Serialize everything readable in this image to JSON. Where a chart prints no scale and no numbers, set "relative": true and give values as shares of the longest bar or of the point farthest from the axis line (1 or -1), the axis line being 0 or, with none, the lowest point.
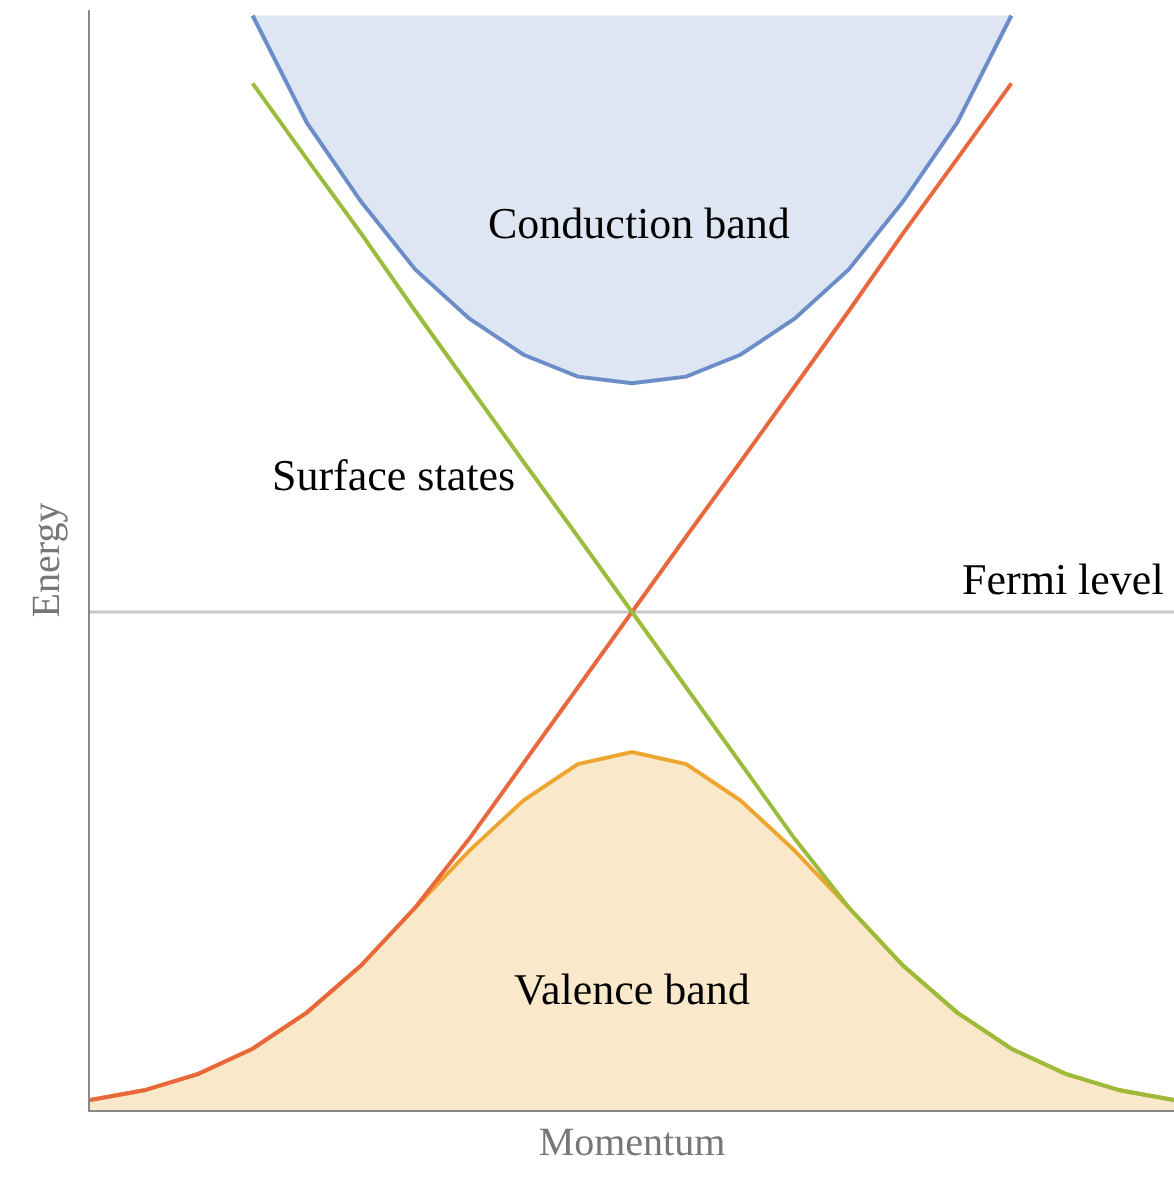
{
  "chart_data": {
    "type": "line",
    "relative": true,
    "xlabel": "Momentum",
    "ylabel": "Energy",
    "legend": false,
    "grid": false,
    "categories": [
      null,
      null,
      null,
      null,
      null,
      null,
      null,
      null,
      null,
      null,
      null,
      null,
      null,
      null,
      null,
      null,
      null,
      null,
      null,
      null,
      null
    ],
    "series": [
      {
        "name": "Valence band",
        "type": "area",
        "color": "#eda530",
        "values": [
          0.009,
          0.018,
          0.033,
          0.056,
          0.089,
          0.132,
          0.185,
          0.237,
          0.283,
          0.316,
          0.327,
          0.316,
          0.283,
          0.237,
          0.185,
          0.132,
          0.089,
          0.056,
          0.033,
          0.018,
          0.009
        ]
      },
      {
        "name": "Conduction band",
        "type": "line",
        "color": "#6b8cc7",
        "values": [
          null,
          null,
          null,
          1,
          0.902,
          0.83,
          0.768,
          0.723,
          0.69,
          0.67,
          0.664,
          0.67,
          0.69,
          0.723,
          0.768,
          0.83,
          0.902,
          1,
          null,
          null,
          null
        ],
        "lower": [
          null,
          null,
          null,
          1,
          0.902,
          0.83,
          0.768,
          0.723,
          0.69,
          0.67,
          0.664,
          0.67,
          0.69,
          0.723,
          0.768,
          0.83,
          0.902,
          1,
          null,
          null,
          null
        ],
        "upper": [
          null,
          null,
          null,
          1,
          1,
          1,
          1,
          1,
          1,
          1,
          1,
          1,
          1,
          1,
          1,
          1,
          1,
          1,
          null,
          null,
          null
        ]
      },
      {
        "color": "#e8673c",
        "values": [
          0.009,
          0.018,
          0.033,
          0.056,
          0.089,
          0.132,
          0.185,
          0.248,
          0.317,
          0.386,
          0.455,
          0.524,
          0.592,
          0.661,
          0.73,
          0.801,
          0.869,
          0.938,
          null,
          null,
          null
        ]
      },
      {
        "name": "Surface states",
        "color": "#9bbb3a",
        "values": [
          null,
          null,
          null,
          0.938,
          0.869,
          0.801,
          0.73,
          0.661,
          0.592,
          0.524,
          0.455,
          0.386,
          0.317,
          0.248,
          0.185,
          0.132,
          0.089,
          0.056,
          0.033,
          0.018,
          0.009
        ]
      }
    ],
    "ref_lines": [
      {
        "axis": "y",
        "value": 0.455,
        "label": "Fermi level",
        "color": "#c8c8c8"
      }
    ]
  }
}
